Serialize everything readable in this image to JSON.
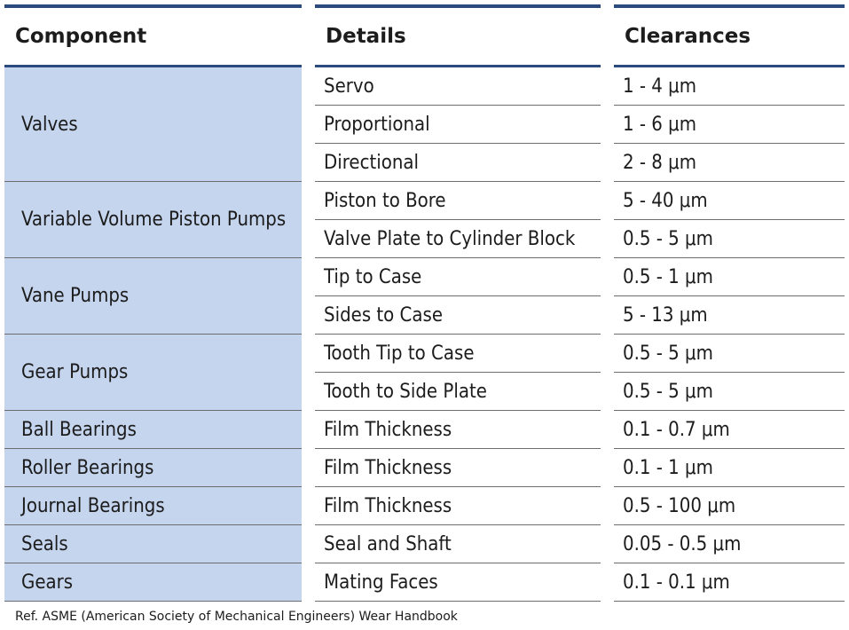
{
  "table": {
    "headers": [
      "Component",
      "Details",
      "Clearances"
    ],
    "groups": [
      {
        "component": "Valves",
        "rows": [
          {
            "detail": "Servo",
            "clearance": "1 - 4 μm"
          },
          {
            "detail": "Proportional",
            "clearance": "1 - 6 μm"
          },
          {
            "detail": "Directional",
            "clearance": "2 - 8 μm"
          }
        ]
      },
      {
        "component": "Variable Volume Piston Pumps",
        "rows": [
          {
            "detail": "Piston to Bore",
            "clearance": "5 - 40 μm"
          },
          {
            "detail": "Valve Plate to Cylinder Block",
            "clearance": "0.5 - 5 μm"
          }
        ]
      },
      {
        "component": "Vane Pumps",
        "rows": [
          {
            "detail": "Tip to Case",
            "clearance": "0.5 - 1 μm"
          },
          {
            "detail": "Sides to Case",
            "clearance": "5 - 13 μm"
          }
        ]
      },
      {
        "component": "Gear Pumps",
        "rows": [
          {
            "detail": "Tooth Tip to Case",
            "clearance": "0.5 - 5 μm"
          },
          {
            "detail": "Tooth to Side Plate",
            "clearance": "0.5 - 5 μm"
          }
        ]
      },
      {
        "component": "Ball Bearings",
        "rows": [
          {
            "detail": "Film Thickness",
            "clearance": "0.1 - 0.7 μm"
          }
        ]
      },
      {
        "component": "Roller Bearings",
        "rows": [
          {
            "detail": "Film Thickness",
            "clearance": "0.1 - 1 μm"
          }
        ]
      },
      {
        "component": "Journal Bearings",
        "rows": [
          {
            "detail": "Film Thickness",
            "clearance": "0.5 - 100 μm"
          }
        ]
      },
      {
        "component": "Seals",
        "rows": [
          {
            "detail": "Seal and Shaft",
            "clearance": "0.05 - 0.5 μm"
          }
        ]
      },
      {
        "component": "Gears",
        "rows": [
          {
            "detail": "Mating Faces",
            "clearance": "0.1 - 0.1 μm"
          }
        ]
      }
    ]
  },
  "footnote": "Ref. ASME (American Society of Mechanical Engineers) Wear Handbook",
  "colors": {
    "header_rule": "#2b4a7e",
    "component_fill": "#c5d5ee",
    "row_rule": "#6d6d6d"
  }
}
